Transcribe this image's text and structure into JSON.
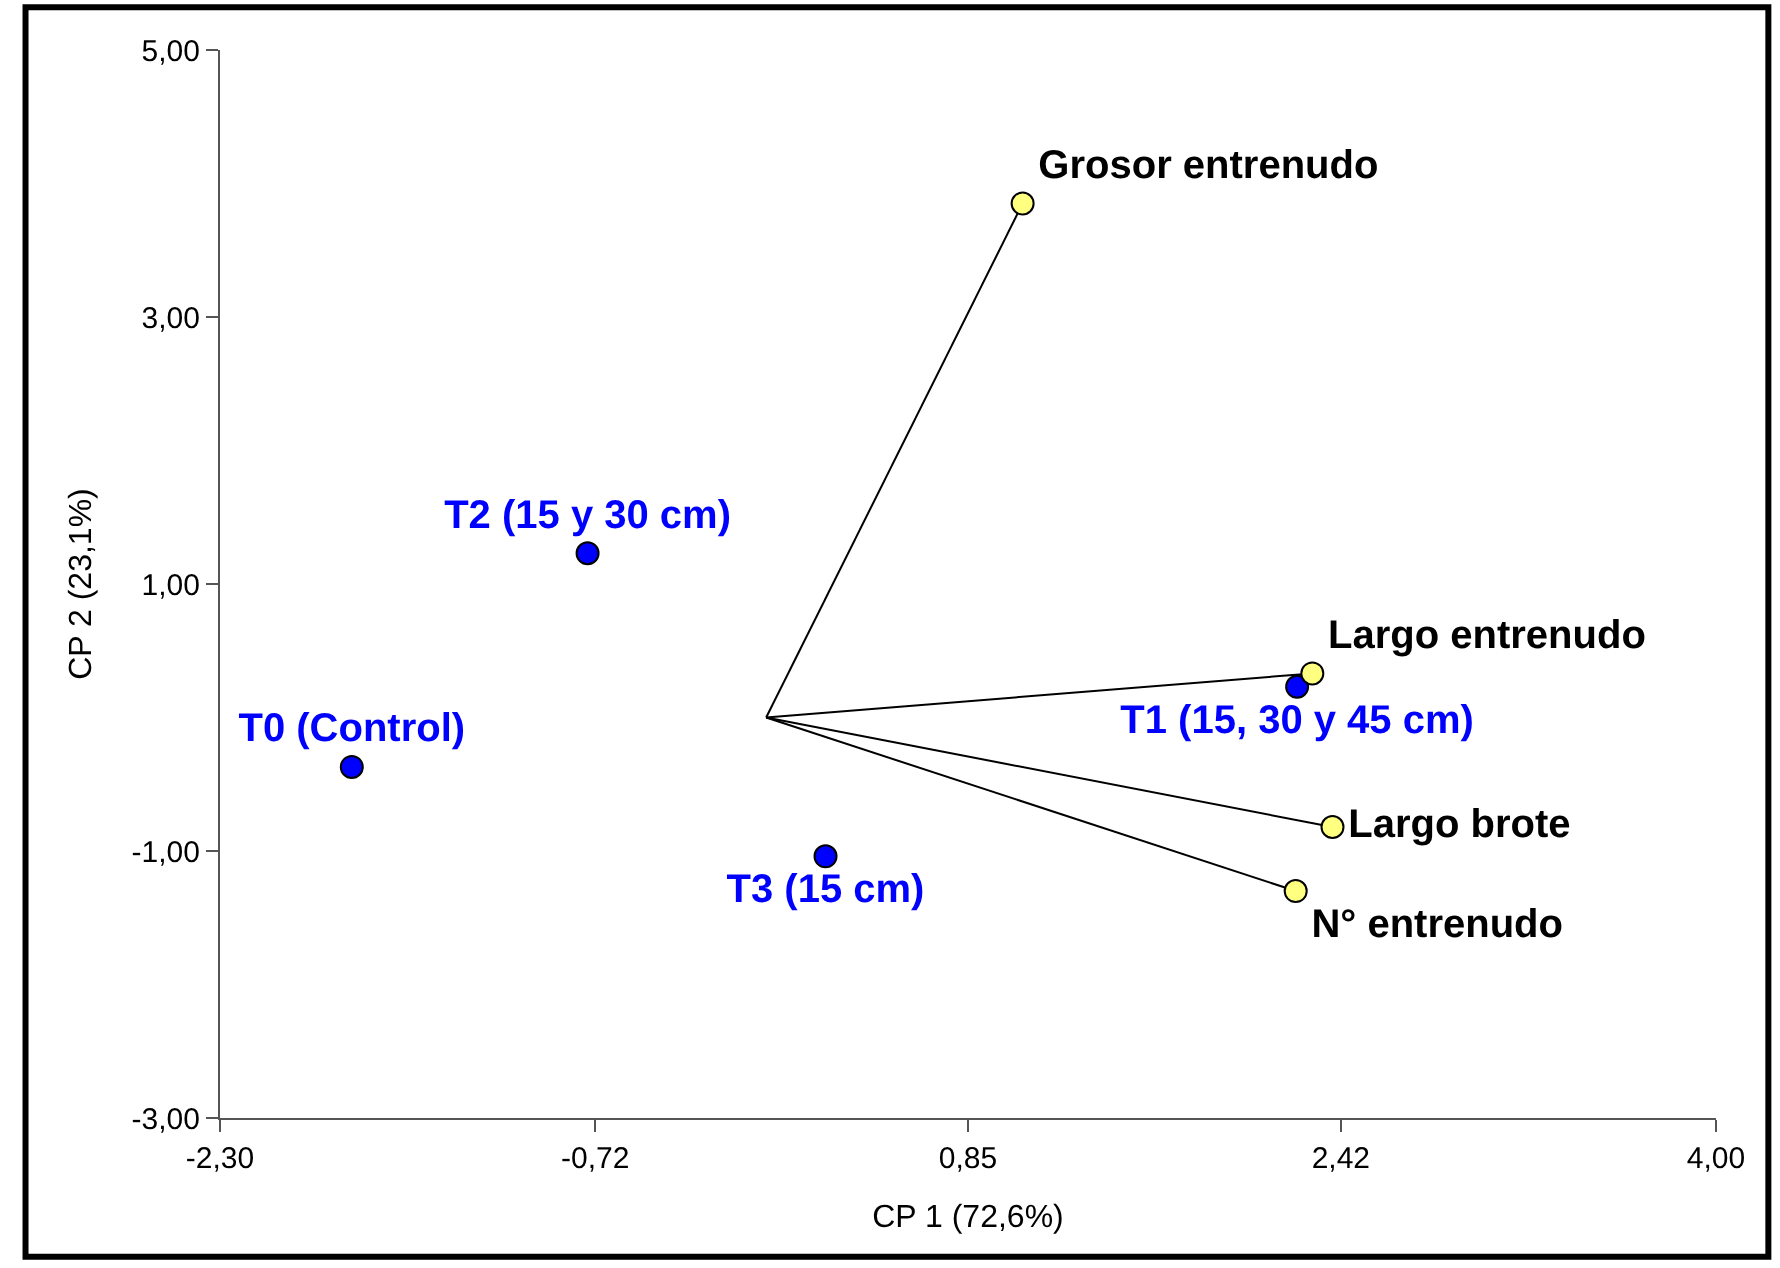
{
  "chart_data": {
    "type": "scatter",
    "xlabel": "CP 1 (72,6%)",
    "ylabel": "CP 2 (23,1%)",
    "xlim": [
      -2.3,
      4.0
    ],
    "ylim": [
      -3.0,
      5.0
    ],
    "xticks": [
      {
        "value": -2.3,
        "label": "-2,30"
      },
      {
        "value": -0.72,
        "label": "-0,72"
      },
      {
        "value": 0.85,
        "label": "0,85"
      },
      {
        "value": 2.42,
        "label": "2,42"
      },
      {
        "value": 4.0,
        "label": "4,00"
      }
    ],
    "yticks": [
      {
        "value": -3,
        "label": "-3,00"
      },
      {
        "value": -1,
        "label": "-1,00"
      },
      {
        "value": 1,
        "label": "1,00"
      },
      {
        "value": 3,
        "label": "3,00"
      },
      {
        "value": 5,
        "label": "5,00"
      }
    ],
    "marker": "circle",
    "series": [
      {
        "type": "line",
        "marker": "none",
        "color": "#000000",
        "x": [
          0,
          1.08,
          0,
          2.3,
          0,
          2.385,
          0,
          2.23
        ],
        "values": [
          0,
          3.85,
          0,
          0.33,
          0,
          -0.82,
          0,
          -1.3
        ]
      },
      {
        "color": "#0000ff",
        "x": [
          -1.745,
          -0.752,
          0.25,
          2.236
        ],
        "values": [
          -0.37,
          1.23,
          -1.04,
          0.23
        ],
        "value_labels": [
          "T0 (Control)",
          "T2 (15 y 30 cm)",
          "T3 (15 cm)",
          "T1 (15, 30 y 45 cm)"
        ]
      },
      {
        "color": "#ffff80",
        "x": [
          1.08,
          2.3,
          2.385,
          2.23
        ],
        "values": [
          3.85,
          0.33,
          -0.82,
          -1.3
        ],
        "value_labels": [
          "Grosor entrenudo",
          "Largo entrenudo",
          "Largo brote",
          "N° entrenudo"
        ]
      }
    ]
  }
}
